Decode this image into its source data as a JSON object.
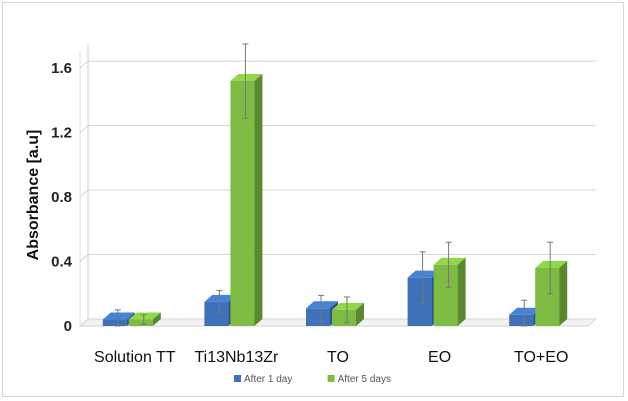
{
  "chart_data": {
    "type": "bar",
    "title": "",
    "xlabel": "",
    "ylabel": "Absorbance  [a.u]",
    "ylim": [
      0,
      1.7
    ],
    "yticks": [
      0,
      0.4,
      0.8,
      1.2,
      1.6
    ],
    "ytick_labels": [
      "0",
      "0.4",
      "0.8",
      "1.2",
      "1.6"
    ],
    "categories": [
      "Solution TT",
      "Ti13Nb13Zr",
      "TO",
      "EO",
      "TO+EO"
    ],
    "series": [
      {
        "name": "After 1 day",
        "color": "#3d72bb",
        "values": [
          0.04,
          0.15,
          0.11,
          0.3,
          0.07
        ],
        "errors": [
          0.06,
          0.07,
          0.08,
          0.16,
          0.09
        ]
      },
      {
        "name": "After 5 days",
        "color": "#7dbb42",
        "values": [
          0.04,
          1.52,
          0.1,
          0.38,
          0.36
        ],
        "errors": [
          0.03,
          0.23,
          0.08,
          0.14,
          0.16
        ]
      }
    ],
    "grid": true,
    "legend": "bottom",
    "style": "3d-bars"
  }
}
